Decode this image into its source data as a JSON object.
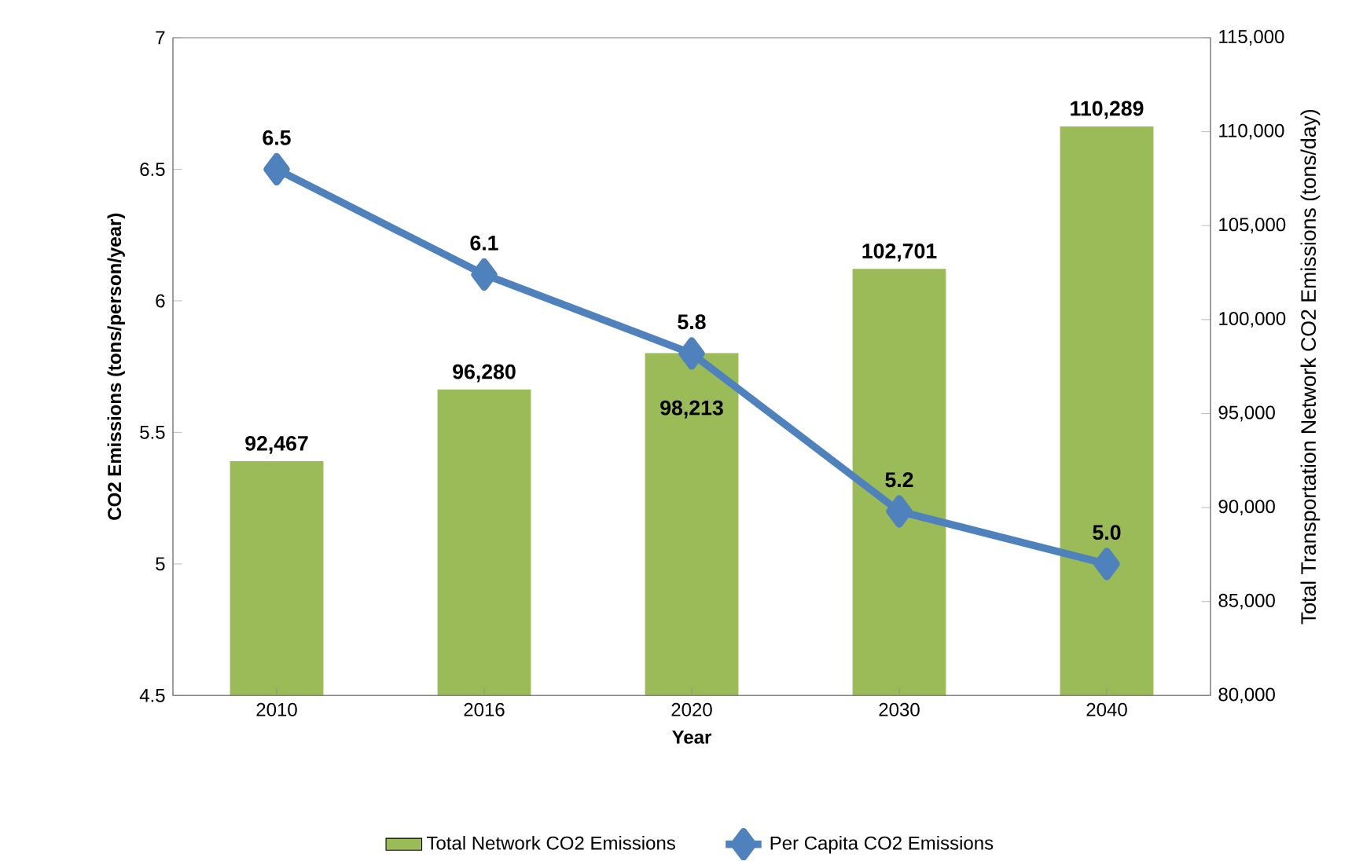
{
  "chart_data": {
    "type": "bar",
    "categories": [
      "2010",
      "2016",
      "2020",
      "2030",
      "2040"
    ],
    "xlabel": "Year",
    "ylabel": "CO2 Emissions (tons/person/year)",
    "y2label": "Total Transportation Network CO2 Emissions (tons/day)",
    "ylim": [
      4.5,
      7
    ],
    "yticks": [
      4.5,
      5,
      5.5,
      6,
      6.5,
      7
    ],
    "y2lim": [
      80000,
      115000
    ],
    "y2ticks": [
      {
        "value": 80000,
        "label": "80,000"
      },
      {
        "value": 85000,
        "label": "85,000"
      },
      {
        "value": 90000,
        "label": "90,000"
      },
      {
        "value": 95000,
        "label": "95,000"
      },
      {
        "value": 100000,
        "label": "100,000"
      },
      {
        "value": 105000,
        "label": "105,000"
      },
      {
        "value": 110000,
        "label": "110,000"
      },
      {
        "value": 115000,
        "label": "115,000"
      }
    ],
    "legend": "bottom",
    "series": [
      {
        "name": "Total Network CO2 Emissions",
        "axis": "y2",
        "color": "#9bbb59",
        "values": [
          92467,
          96280,
          98213,
          102701,
          110289
        ],
        "value_labels": [
          "92,467",
          "96,280",
          "98,213",
          "102,701",
          "110,289"
        ]
      },
      {
        "name": "Per Capita CO2 Emissions",
        "type": "line",
        "axis": "y",
        "color": "#4f81bd",
        "marker": "diamond",
        "values": [
          6.5,
          6.1,
          5.8,
          5.2,
          5.0
        ],
        "value_labels": [
          "6.5",
          "6.1",
          "5.8",
          "5.2",
          "5.0"
        ]
      }
    ]
  }
}
